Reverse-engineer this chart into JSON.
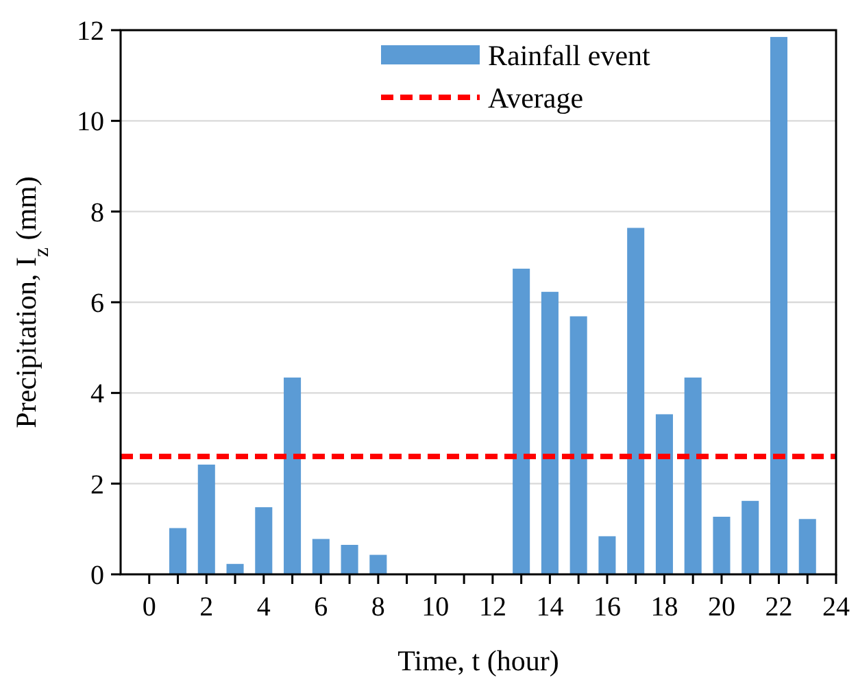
{
  "chart_data": {
    "type": "bar",
    "xlabel": "Time, t (hour)",
    "ylabel": "Precipitation, I$_{z}$ (mm)",
    "x": [
      1,
      2,
      3,
      4,
      5,
      6,
      7,
      8,
      13,
      14,
      15,
      16,
      17,
      18,
      19,
      20,
      21,
      22,
      23
    ],
    "series": [
      {
        "name": "Rainfall event",
        "color": "#5b9bd5",
        "values": [
          1.02,
          2.42,
          0.23,
          1.48,
          4.34,
          0.78,
          0.65,
          0.43,
          6.74,
          6.23,
          5.69,
          0.84,
          7.64,
          3.53,
          4.34,
          1.27,
          1.62,
          11.85,
          1.22
        ]
      }
    ],
    "xlim": [
      -1,
      24
    ],
    "xticks": [
      0,
      {
        "value": 1,
        "label": null
      },
      2,
      {
        "value": 3,
        "label": null
      },
      4,
      {
        "value": 5,
        "label": null
      },
      6,
      {
        "value": 7,
        "label": null
      },
      8,
      {
        "value": 9,
        "label": null
      },
      10,
      {
        "value": 11,
        "label": null
      },
      12,
      {
        "value": 13,
        "label": null
      },
      14,
      {
        "value": 15,
        "label": null
      },
      16,
      {
        "value": 17,
        "label": null
      },
      18,
      {
        "value": 19,
        "label": null
      },
      20,
      {
        "value": 21,
        "label": null
      },
      22,
      {
        "value": 23,
        "label": null
      },
      24
    ],
    "ylim": [
      0,
      12
    ],
    "yticks": [
      0,
      2,
      4,
      6,
      8,
      10,
      12
    ],
    "ref_lines": [
      {
        "axis": "y",
        "value": 2.6,
        "label": "Average",
        "color": "#ff0000",
        "line_style": "dashed"
      }
    ],
    "grid": "y",
    "legend": "top"
  }
}
